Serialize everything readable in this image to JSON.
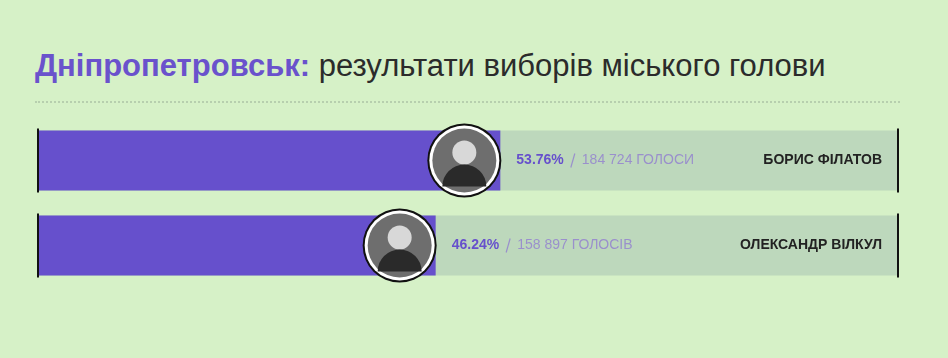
{
  "chart_data": {
    "type": "bar",
    "orientation": "horizontal",
    "title": "Дніпропетровськ: результати виборів міського голови",
    "categories": [
      "БОРИС ФІЛАТОВ",
      "ОЛЕКСАНДР ВІЛКУЛ"
    ],
    "values": [
      53.76,
      46.24
    ],
    "value_labels": [
      "53.76%",
      "46.24%"
    ],
    "votes": [
      184724,
      158897
    ],
    "votes_labels": [
      "184 724 ГОЛОСИ",
      "158 897 ГОЛОСІВ"
    ],
    "color": "#6650cc",
    "xlim": [
      0,
      100
    ],
    "data_labels": true
  }
}
